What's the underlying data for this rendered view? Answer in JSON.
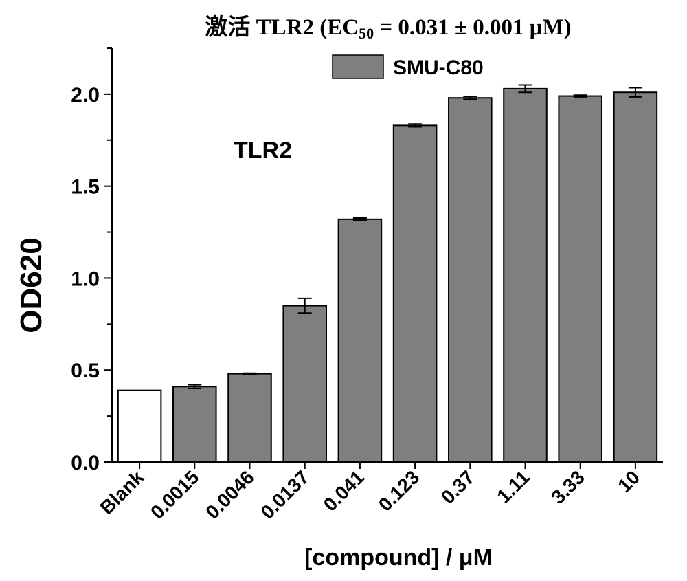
{
  "chart_data": {
    "type": "bar",
    "title": {
      "prefix": "激活 TLR2 (EC",
      "subscript": "50",
      "suffix": " = 0.031 ± 0.001 μM)"
    },
    "xlabel": "[compound] / μM",
    "ylabel": "OD620",
    "ylim": [
      0,
      2.25
    ],
    "yticks": [
      "0.0",
      "0.5",
      "1.0",
      "1.5",
      "2.0"
    ],
    "ytick_values": [
      0,
      0.5,
      1.0,
      1.5,
      2.0
    ],
    "categories": [
      "Blank",
      "0.0015",
      "0.0046",
      "0.0137",
      "0.041",
      "0.123",
      "0.37",
      "1.11",
      "3.33",
      "10"
    ],
    "series": [
      {
        "name": "SMU-C80",
        "values": [
          0.39,
          0.41,
          0.48,
          0.85,
          1.32,
          1.83,
          1.98,
          2.03,
          1.99,
          2.01
        ],
        "errors": [
          0.0,
          0.01,
          0.003,
          0.04,
          0.007,
          0.008,
          0.008,
          0.02,
          0.005,
          0.025
        ]
      }
    ],
    "legend": {
      "position": "top-right",
      "label": "SMU-C80"
    },
    "annotation": "TLR2",
    "grid": false,
    "colors": {
      "bar": "#7f7f7f",
      "blank_bar": "#ffffff",
      "edge": "#000000"
    }
  }
}
